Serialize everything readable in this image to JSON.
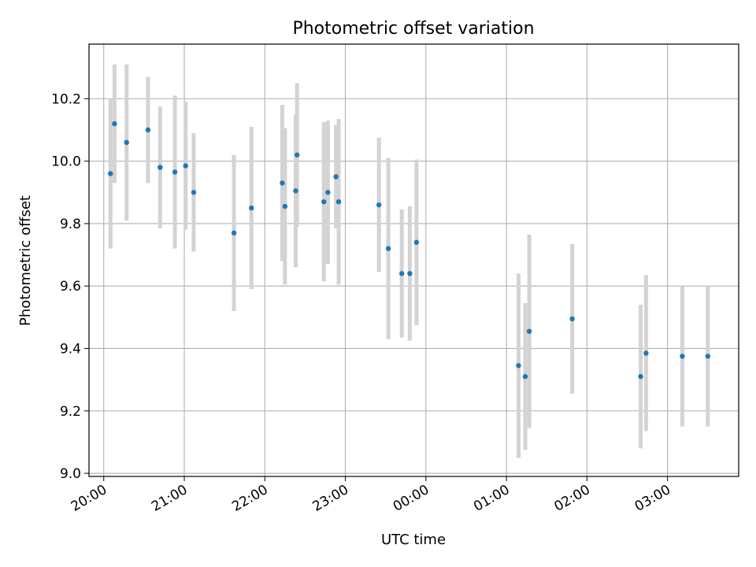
{
  "chart_data": {
    "type": "scatter",
    "title": "Photometric offset variation",
    "xlabel": "UTC time",
    "ylabel": "Photometric offset",
    "xlim": [
      "2000-01-01T19:49",
      "2000-01-02T03:53"
    ],
    "ylim": [
      8.99,
      10.375
    ],
    "x_ticks": [
      "2000-01-01T20:00",
      "2000-01-01T21:00",
      "2000-01-01T22:00",
      "2000-01-01T23:00",
      "2000-01-02T00:00",
      "2000-01-02T01:00",
      "2000-01-02T02:00",
      "2000-01-02T03:00"
    ],
    "x_tick_labels": [
      "20:00",
      "21:00",
      "22:00",
      "23:00",
      "00:00",
      "01:00",
      "02:00",
      "03:00"
    ],
    "y_ticks": [
      9.0,
      9.2,
      9.4,
      9.6,
      9.8,
      10.0,
      10.2
    ],
    "y_tick_labels": [
      "9.0",
      "9.2",
      "9.4",
      "9.6",
      "9.8",
      "10.0",
      "10.2"
    ],
    "grid": true,
    "colors": {
      "marker": "#1f77b4",
      "errorbar": "#d3d3d3",
      "grid": "#b0b0b0"
    },
    "points": [
      {
        "x": "2000-01-01T20:05",
        "y": 9.96,
        "err": 0.24
      },
      {
        "x": "2000-01-01T20:08",
        "y": 10.12,
        "err": 0.19
      },
      {
        "x": "2000-01-01T20:17",
        "y": 10.06,
        "err": 0.25
      },
      {
        "x": "2000-01-01T20:33",
        "y": 10.1,
        "err": 0.17
      },
      {
        "x": "2000-01-01T20:42",
        "y": 9.98,
        "err": 0.195
      },
      {
        "x": "2000-01-01T20:53",
        "y": 9.965,
        "err": 0.245
      },
      {
        "x": "2000-01-01T21:01",
        "y": 9.985,
        "err": 0.205
      },
      {
        "x": "2000-01-01T21:07",
        "y": 9.9,
        "err": 0.19
      },
      {
        "x": "2000-01-01T21:37",
        "y": 9.77,
        "err": 0.25
      },
      {
        "x": "2000-01-01T21:50",
        "y": 9.85,
        "err": 0.26
      },
      {
        "x": "2000-01-01T22:13",
        "y": 9.93,
        "err": 0.25
      },
      {
        "x": "2000-01-01T22:15",
        "y": 9.855,
        "err": 0.25
      },
      {
        "x": "2000-01-01T22:23",
        "y": 9.905,
        "err": 0.245
      },
      {
        "x": "2000-01-01T22:24",
        "y": 10.02,
        "err": 0.23
      },
      {
        "x": "2000-01-01T22:44",
        "y": 9.87,
        "err": 0.255
      },
      {
        "x": "2000-01-01T22:47",
        "y": 9.9,
        "err": 0.23
      },
      {
        "x": "2000-01-01T22:53",
        "y": 9.95,
        "err": 0.165
      },
      {
        "x": "2000-01-01T22:55",
        "y": 9.87,
        "err": 0.265
      },
      {
        "x": "2000-01-01T23:25",
        "y": 9.86,
        "err": 0.215
      },
      {
        "x": "2000-01-01T23:32",
        "y": 9.72,
        "err": 0.29
      },
      {
        "x": "2000-01-01T23:42",
        "y": 9.64,
        "err": 0.205
      },
      {
        "x": "2000-01-01T23:48",
        "y": 9.64,
        "err": 0.215
      },
      {
        "x": "2000-01-01T23:53",
        "y": 9.74,
        "err": 0.265
      },
      {
        "x": "2000-01-02T01:09",
        "y": 9.345,
        "err": 0.295
      },
      {
        "x": "2000-01-02T01:14",
        "y": 9.31,
        "err": 0.235
      },
      {
        "x": "2000-01-02T01:17",
        "y": 9.455,
        "err": 0.31
      },
      {
        "x": "2000-01-02T01:49",
        "y": 9.495,
        "err": 0.24
      },
      {
        "x": "2000-01-02T02:40",
        "y": 9.31,
        "err": 0.23
      },
      {
        "x": "2000-01-02T02:44",
        "y": 9.385,
        "err": 0.25
      },
      {
        "x": "2000-01-02T03:11",
        "y": 9.375,
        "err": 0.225
      },
      {
        "x": "2000-01-02T03:30",
        "y": 9.375,
        "err": 0.225
      }
    ]
  }
}
